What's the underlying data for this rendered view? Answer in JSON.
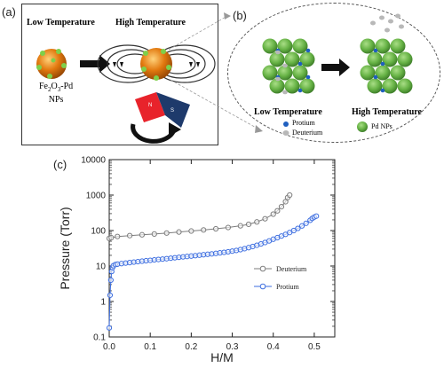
{
  "panel_a": {
    "label": "(a)",
    "low_temp": "Low Temperature",
    "high_temp": "High Temperature",
    "np_label_base": "Fe",
    "np_label_sub1": "2",
    "np_label_mid": "O",
    "np_label_sub2": "3",
    "np_label_end": "-Pd",
    "np_label_line2": "NPs",
    "magnet_n": "N",
    "magnet_s": "S"
  },
  "panel_b": {
    "label": "(b)",
    "low_temp": "Low Temperature",
    "high_temp": "High Temperature",
    "legend_protium": "Protium",
    "legend_deuterium": "Deuterium",
    "legend_pd": "Pd NPs"
  },
  "colors": {
    "pd_green": "#66b245",
    "protium_blue": "#1f5fbf",
    "deuterium_gray": "#b8b8b8",
    "np_orange": "#e2790f",
    "magnet_red": "#e8232b",
    "magnet_navy": "#1e3a6b",
    "series_deuterium": "#7d7d7d",
    "series_protium": "#3d6ee0"
  },
  "chart_data": {
    "label": "(c)",
    "type": "scatter",
    "xlabel": "H/M",
    "ylabel": "Pressure (Torr)",
    "x_ticks": [
      "0.0",
      "0.1",
      "0.2",
      "0.3",
      "0.4",
      "0.5"
    ],
    "y_ticks": [
      "0.1",
      "1",
      "10",
      "100",
      "1000",
      "10000"
    ],
    "xlim": [
      0.0,
      0.55
    ],
    "ylim": [
      0.1,
      10000
    ],
    "y_scale": "log",
    "legend_position": "lower-right",
    "series": [
      {
        "name": "Deuterium",
        "color": "#7d7d7d",
        "points": [
          [
            0.0,
            60
          ],
          [
            0.005,
            63
          ],
          [
            0.02,
            68
          ],
          [
            0.05,
            72
          ],
          [
            0.08,
            76
          ],
          [
            0.11,
            80
          ],
          [
            0.14,
            85
          ],
          [
            0.17,
            91
          ],
          [
            0.2,
            97
          ],
          [
            0.23,
            104
          ],
          [
            0.26,
            112
          ],
          [
            0.29,
            122
          ],
          [
            0.32,
            136
          ],
          [
            0.34,
            150
          ],
          [
            0.36,
            175
          ],
          [
            0.38,
            215
          ],
          [
            0.4,
            290
          ],
          [
            0.41,
            360
          ],
          [
            0.42,
            470
          ],
          [
            0.43,
            650
          ],
          [
            0.435,
            850
          ],
          [
            0.44,
            1000
          ]
        ]
      },
      {
        "name": "Protium",
        "color": "#3d6ee0",
        "points": [
          [
            0.0,
            0.18
          ],
          [
            0.002,
            1.5
          ],
          [
            0.004,
            4
          ],
          [
            0.006,
            7
          ],
          [
            0.008,
            9
          ],
          [
            0.01,
            10.2
          ],
          [
            0.015,
            11
          ],
          [
            0.02,
            11.3
          ],
          [
            0.03,
            11.7
          ],
          [
            0.04,
            12.1
          ],
          [
            0.05,
            12.5
          ],
          [
            0.06,
            12.9
          ],
          [
            0.07,
            13.3
          ],
          [
            0.08,
            13.7
          ],
          [
            0.09,
            14.1
          ],
          [
            0.1,
            14.5
          ],
          [
            0.11,
            14.9
          ],
          [
            0.12,
            15.3
          ],
          [
            0.13,
            15.7
          ],
          [
            0.14,
            16.1
          ],
          [
            0.15,
            16.6
          ],
          [
            0.16,
            17.1
          ],
          [
            0.17,
            17.6
          ],
          [
            0.18,
            18.1
          ],
          [
            0.19,
            18.6
          ],
          [
            0.2,
            19.1
          ],
          [
            0.21,
            19.6
          ],
          [
            0.22,
            20.2
          ],
          [
            0.23,
            20.8
          ],
          [
            0.24,
            21.4
          ],
          [
            0.25,
            22
          ],
          [
            0.26,
            22.7
          ],
          [
            0.27,
            23.5
          ],
          [
            0.28,
            24.3
          ],
          [
            0.29,
            25.2
          ],
          [
            0.3,
            26.3
          ],
          [
            0.31,
            27.5
          ],
          [
            0.32,
            29
          ],
          [
            0.33,
            30.8
          ],
          [
            0.34,
            33
          ],
          [
            0.35,
            35.5
          ],
          [
            0.36,
            38.5
          ],
          [
            0.37,
            42
          ],
          [
            0.38,
            46
          ],
          [
            0.39,
            51
          ],
          [
            0.4,
            57
          ],
          [
            0.41,
            63
          ],
          [
            0.42,
            70
          ],
          [
            0.43,
            78
          ],
          [
            0.44,
            88
          ],
          [
            0.45,
            100
          ],
          [
            0.46,
            115
          ],
          [
            0.47,
            135
          ],
          [
            0.48,
            160
          ],
          [
            0.49,
            195
          ],
          [
            0.495,
            220
          ],
          [
            0.5,
            240
          ],
          [
            0.505,
            255
          ]
        ]
      }
    ]
  }
}
